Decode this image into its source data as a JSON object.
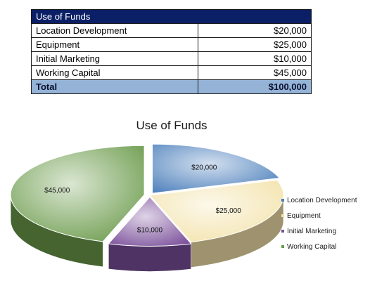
{
  "table": {
    "header": "Use of Funds",
    "rows": [
      {
        "label": "Location Development",
        "amount": "$20,000"
      },
      {
        "label": "Equipment",
        "amount": "$25,000"
      },
      {
        "label": "Initial Marketing",
        "amount": "$10,000"
      },
      {
        "label": "Working Capital",
        "amount": "$45,000"
      }
    ],
    "total": {
      "label": "Total",
      "amount": "$100,000"
    }
  },
  "chart_data": {
    "type": "pie",
    "title": "Use of Funds",
    "categories": [
      "Location Development",
      "Equipment",
      "Initial Marketing",
      "Working Capital"
    ],
    "values": [
      20000,
      25000,
      10000,
      45000
    ],
    "labels": [
      "$20,000",
      "$25,000",
      "$10,000",
      "$45,000"
    ],
    "colors": [
      "#4a7ebb",
      "#f3e2a9",
      "#7a4f9a",
      "#6a9a4a"
    ],
    "legend": "right",
    "style": "3d"
  }
}
